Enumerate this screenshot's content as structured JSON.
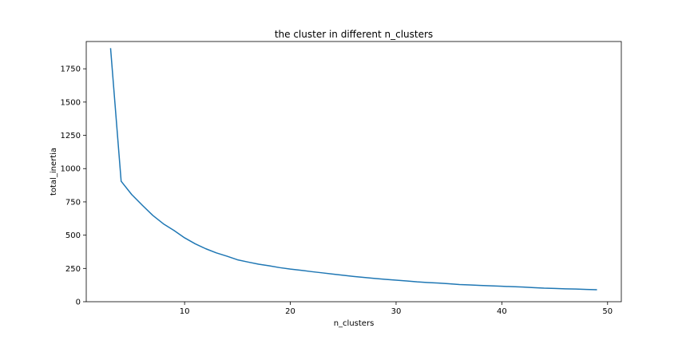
{
  "chart_data": {
    "type": "line",
    "title": "the cluster in different n_clusters",
    "xlabel": "n_clusters",
    "ylabel": "total_inertia",
    "xlim": [
      0.7,
      51.3
    ],
    "ylim": [
      0,
      1955
    ],
    "xticks": [
      10,
      20,
      30,
      40,
      50
    ],
    "yticks": [
      0,
      250,
      500,
      750,
      1000,
      1250,
      1500,
      1750
    ],
    "grid": false,
    "color": "#1f77b4",
    "series": [
      {
        "x": [
          3,
          4,
          5,
          6,
          7,
          8,
          9,
          10,
          11,
          12,
          13,
          14,
          15,
          16,
          17,
          18,
          19,
          20,
          21,
          22,
          23,
          24,
          25,
          26,
          27,
          28,
          29,
          30,
          31,
          32,
          33,
          34,
          35,
          36,
          37,
          38,
          39,
          40,
          41,
          42,
          43,
          44,
          45,
          46,
          47,
          48,
          49
        ],
        "y": [
          1905,
          905,
          805,
          725,
          648,
          585,
          535,
          480,
          435,
          398,
          367,
          342,
          315,
          298,
          282,
          270,
          256,
          245,
          236,
          226,
          217,
          208,
          199,
          190,
          182,
          175,
          168,
          162,
          156,
          149,
          144,
          140,
          135,
          129,
          126,
          122,
          119,
          116,
          113,
          110,
          106,
          102,
          100,
          97,
          95,
          92,
          90
        ]
      }
    ]
  }
}
